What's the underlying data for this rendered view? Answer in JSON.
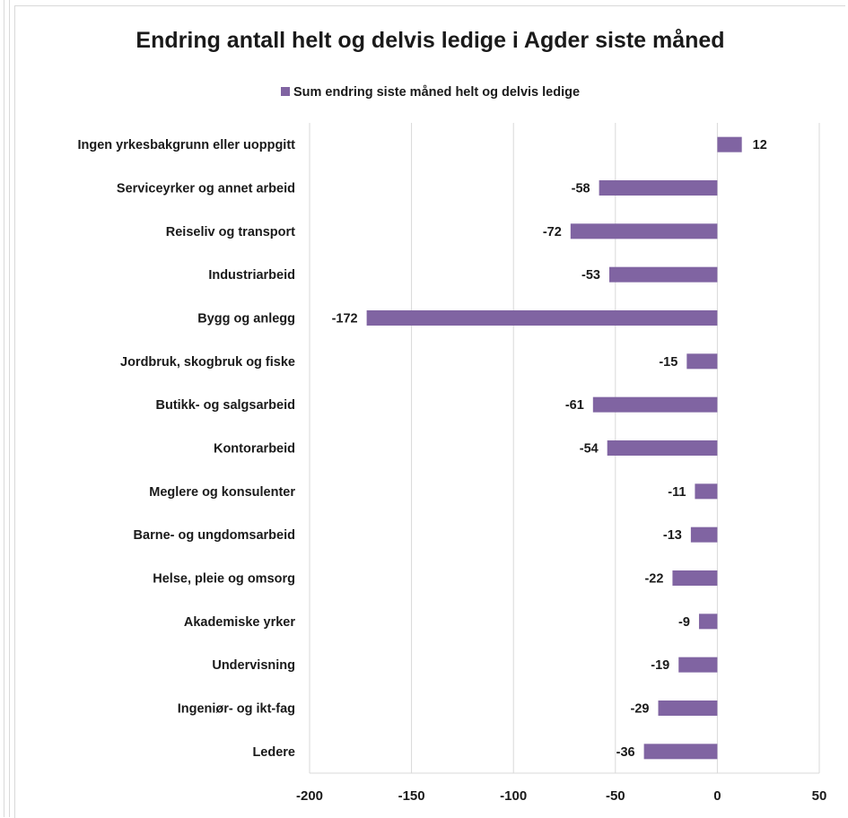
{
  "chart_data": {
    "type": "bar",
    "orientation": "horizontal",
    "title": "Endring antall helt og delvis ledige i Agder siste måned",
    "legend": [
      "Sum endring siste måned helt og delvis ledige"
    ],
    "legend_position": "top",
    "categories": [
      "Ingen yrkesbakgrunn eller uoppgitt",
      "Serviceyrker og annet arbeid",
      "Reiseliv og transport",
      "Industriarbeid",
      "Bygg og anlegg",
      "Jordbruk, skogbruk og fiske",
      "Butikk- og salgsarbeid",
      "Kontorarbeid",
      "Meglere og konsulenter",
      "Barne- og ungdomsarbeid",
      "Helse, pleie og omsorg",
      "Akademiske yrker",
      "Undervisning",
      "Ingeniør- og ikt-fag",
      "Ledere"
    ],
    "series": [
      {
        "name": "Sum endring siste måned helt og delvis ledige",
        "values": [
          12,
          -58,
          -72,
          -53,
          -172,
          -15,
          -61,
          -54,
          -11,
          -13,
          -22,
          -9,
          -19,
          -29,
          -36
        ]
      }
    ],
    "xlim": [
      -200,
      50
    ],
    "x_ticks": [
      "-200",
      "-150",
      "-100",
      "-50",
      "0",
      "50"
    ],
    "grid": true,
    "bar_color": "#8064a2"
  }
}
